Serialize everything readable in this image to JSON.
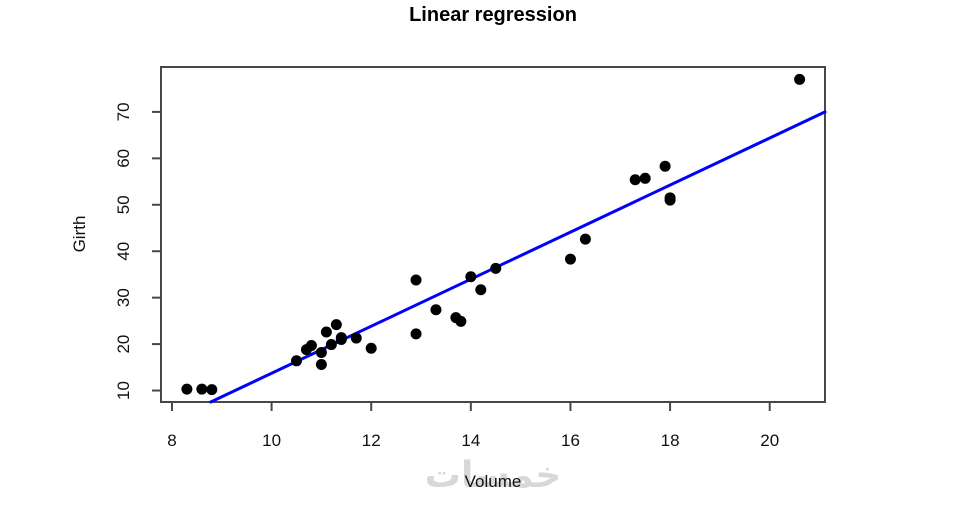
{
  "chart_data": {
    "type": "scatter",
    "title": "Linear regression",
    "xlabel": "Volume",
    "ylabel": "Girth",
    "xlim": [
      7.78,
      21.11
    ],
    "ylim": [
      7.53,
      79.67
    ],
    "xticks": [
      8,
      10,
      12,
      14,
      16,
      18,
      20
    ],
    "yticks": [
      10,
      20,
      30,
      40,
      50,
      60,
      70
    ],
    "grid": false,
    "legend": null,
    "point_color": "#000000",
    "axis_color": "#474747",
    "points": [
      [
        8.3,
        10.3
      ],
      [
        8.6,
        10.3
      ],
      [
        8.8,
        10.2
      ],
      [
        10.5,
        16.4
      ],
      [
        10.7,
        18.8
      ],
      [
        10.8,
        19.7
      ],
      [
        11.0,
        15.6
      ],
      [
        11.0,
        18.2
      ],
      [
        11.1,
        22.6
      ],
      [
        11.2,
        19.9
      ],
      [
        11.3,
        24.2
      ],
      [
        11.4,
        21.0
      ],
      [
        11.4,
        21.4
      ],
      [
        11.7,
        21.3
      ],
      [
        12.0,
        19.1
      ],
      [
        12.9,
        22.2
      ],
      [
        12.9,
        33.8
      ],
      [
        13.3,
        27.4
      ],
      [
        13.7,
        25.7
      ],
      [
        13.8,
        24.9
      ],
      [
        14.0,
        34.5
      ],
      [
        14.2,
        31.7
      ],
      [
        14.5,
        36.3
      ],
      [
        16.0,
        38.3
      ],
      [
        16.3,
        42.6
      ],
      [
        17.3,
        55.4
      ],
      [
        17.5,
        55.7
      ],
      [
        17.9,
        58.3
      ],
      [
        18.0,
        51.5
      ],
      [
        18.0,
        51.0
      ],
      [
        20.6,
        77.0
      ]
    ],
    "regression_line": {
      "slope": 5.0659,
      "intercept": -36.9435,
      "color": "#0000FF"
    }
  },
  "watermark": {
    "text": "خمسات",
    "color": "#d8d8d8"
  }
}
